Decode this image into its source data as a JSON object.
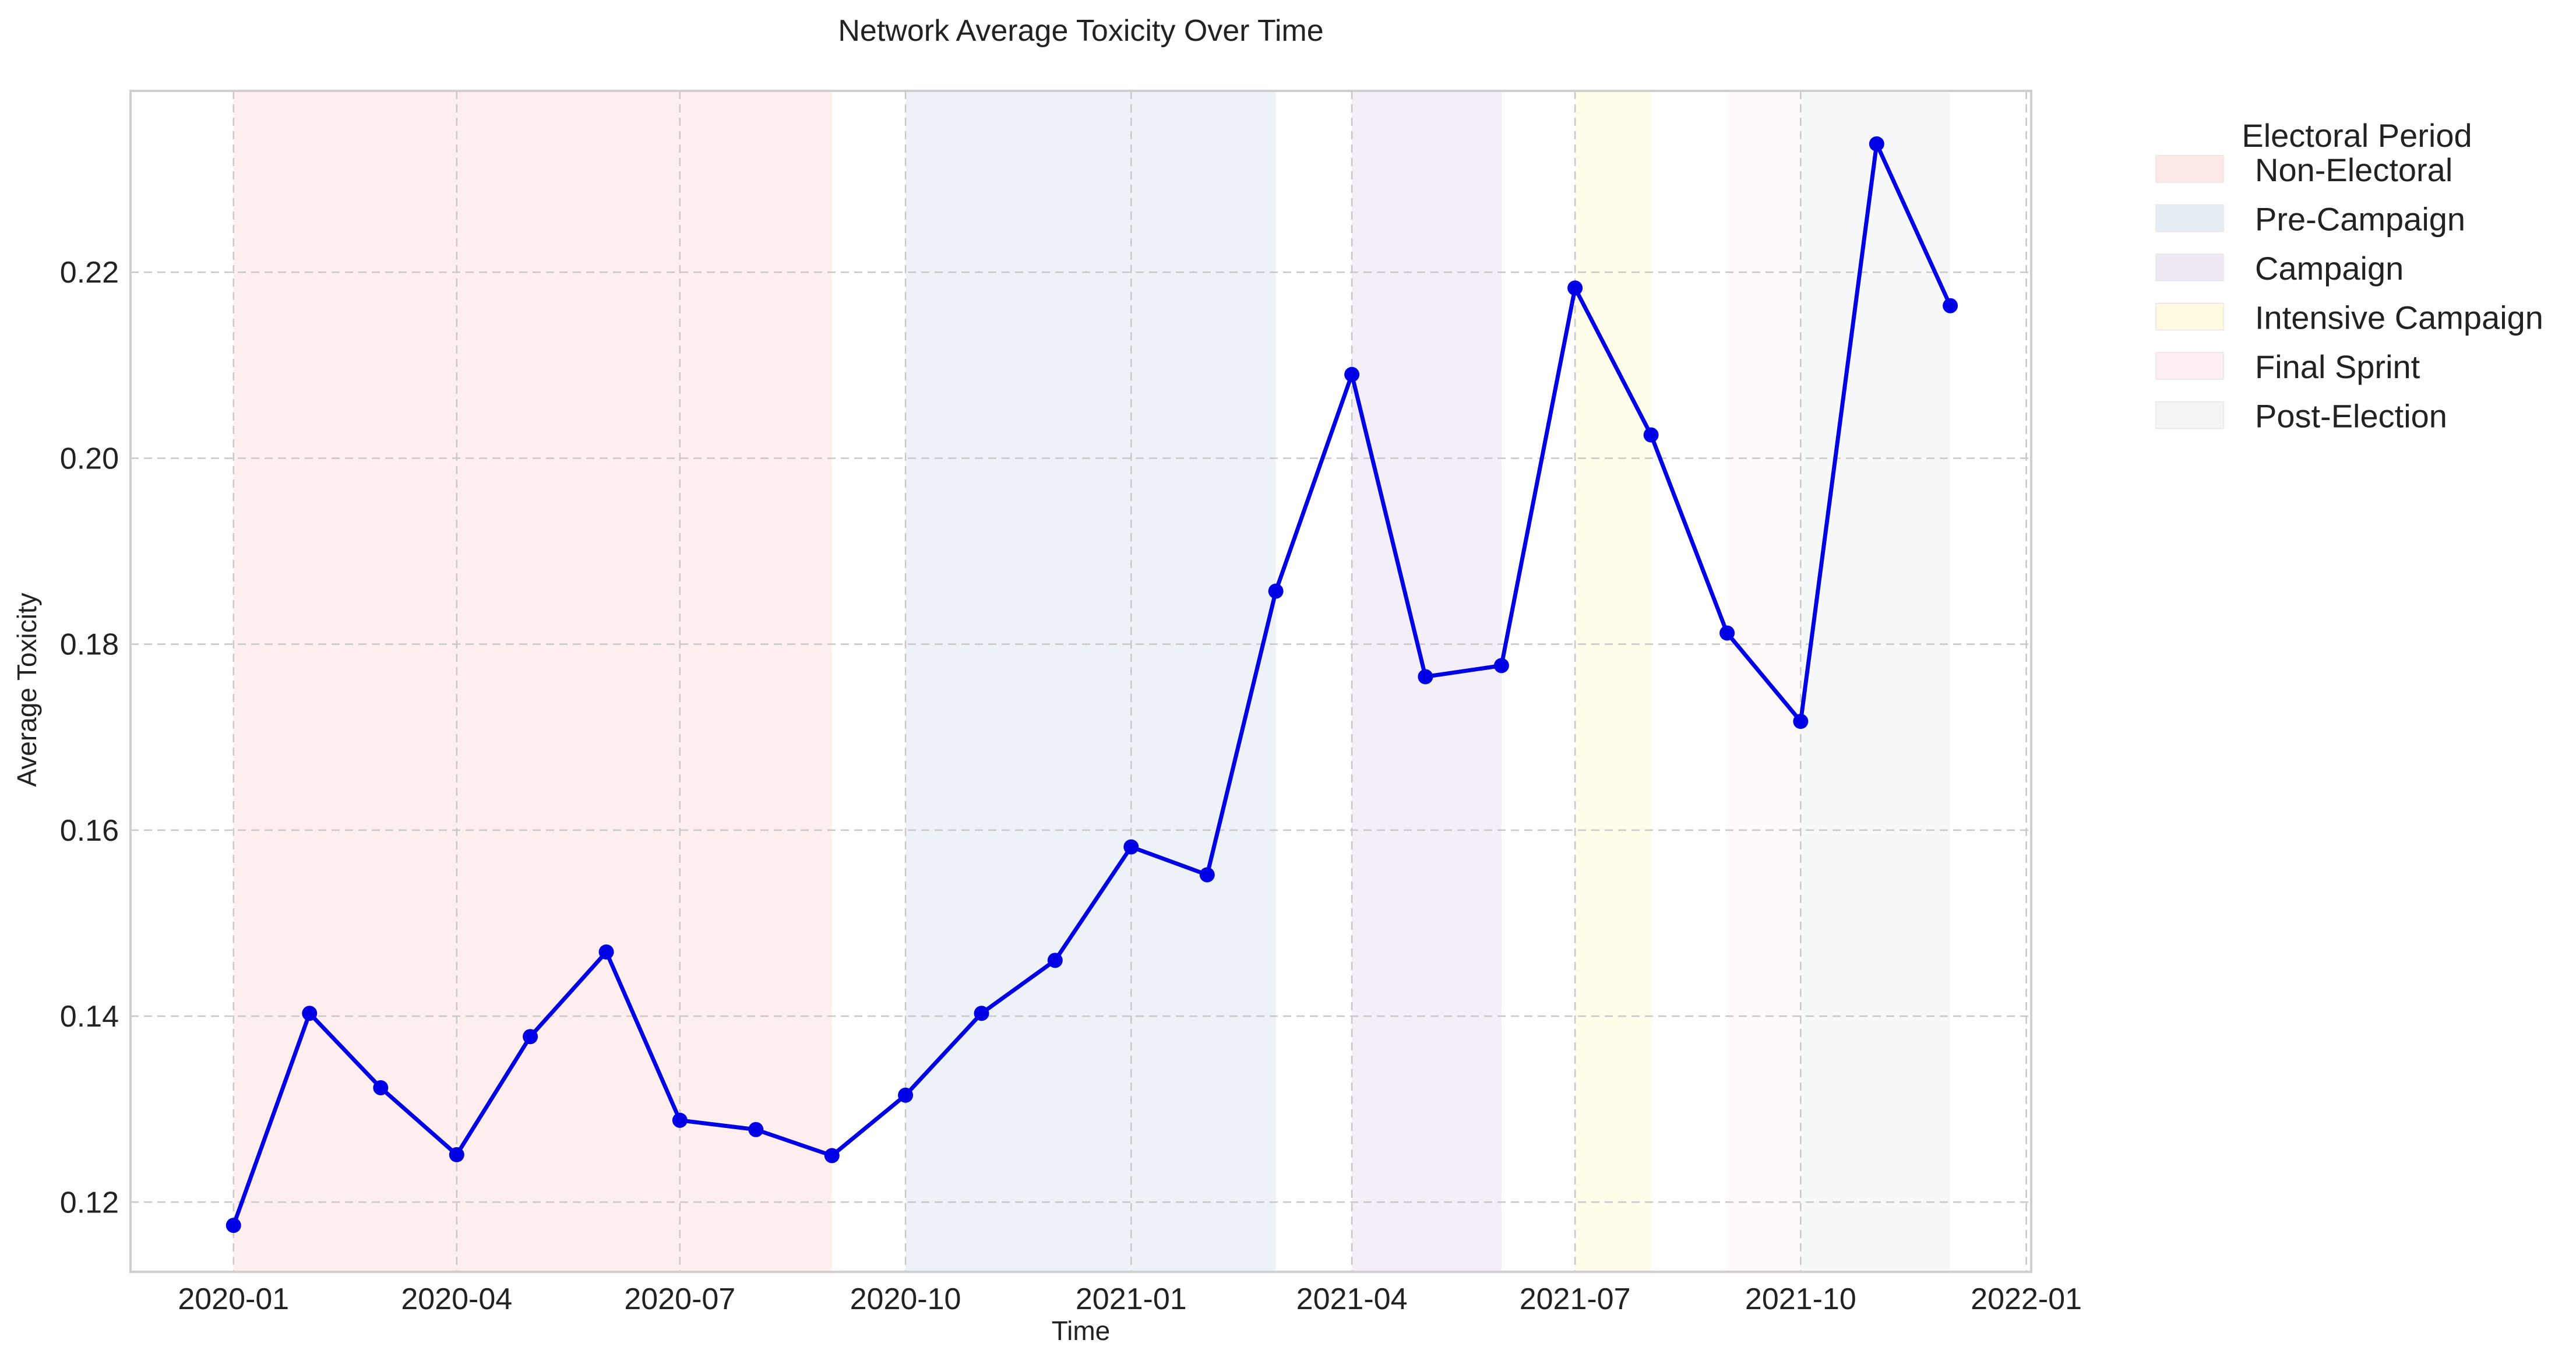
{
  "chart_data": {
    "type": "line",
    "title": "Network Average Toxicity Over Time",
    "xlabel": "Time",
    "ylabel": "Average Toxicity",
    "grid": true,
    "legend_position": "outside-top-right",
    "xlim": [
      "2019-11-20",
      "2022-01-03"
    ],
    "ylim": [
      0.1125,
      0.2395
    ],
    "x_ticks": [
      "2020-01",
      "2020-04",
      "2020-07",
      "2020-10",
      "2021-01",
      "2021-04",
      "2021-07",
      "2021-10",
      "2022-01"
    ],
    "y_ticks": [
      0.12,
      0.14,
      0.16,
      0.18,
      0.2,
      0.22
    ],
    "y_tick_labels": [
      "0.12",
      "0.14",
      "0.16",
      "0.18",
      "0.20",
      "0.22"
    ],
    "series": [
      {
        "color": "#0000e6",
        "marker": "circle",
        "x": [
          "2020-01-01",
          "2020-02-01",
          "2020-03-01",
          "2020-04-01",
          "2020-05-01",
          "2020-06-01",
          "2020-07-01",
          "2020-08-01",
          "2020-09-01",
          "2020-10-01",
          "2020-11-01",
          "2020-12-01",
          "2021-01-01",
          "2021-02-01",
          "2021-03-01",
          "2021-04-01",
          "2021-05-01",
          "2021-06-01",
          "2021-07-01",
          "2021-08-01",
          "2021-09-01",
          "2021-10-01",
          "2021-11-01",
          "2021-12-01"
        ],
        "values": [
          0.1175,
          0.1403,
          0.1323,
          0.1251,
          0.1378,
          0.1469,
          0.1288,
          0.1278,
          0.125,
          0.1315,
          0.1403,
          0.146,
          0.1582,
          0.1552,
          0.1857,
          0.209,
          0.1765,
          0.1777,
          0.2183,
          0.2025,
          0.1812,
          0.1717,
          0.2338,
          0.2164
        ]
      }
    ],
    "legend": {
      "title": "Electoral Period",
      "entries": [
        {
          "label": "Non-Electoral",
          "color": "#fde8e8"
        },
        {
          "label": "Pre-Campaign",
          "color": "#e6eef6"
        },
        {
          "label": "Campaign",
          "color": "#efe8f5"
        },
        {
          "label": "Intensive Campaign",
          "color": "#fffbe3"
        },
        {
          "label": "Final Sprint",
          "color": "#fdeef3"
        },
        {
          "label": "Post-Election",
          "color": "#f4f5f7"
        }
      ]
    },
    "periods": [
      {
        "label": "Non-Electoral",
        "start": "2020-01-01",
        "end": "2020-09-01",
        "color": "#fde8e8",
        "opacity": 0.75
      },
      {
        "label": "Pre-Campaign",
        "start": "2020-10-01",
        "end": "2021-03-01",
        "color": "#e6eef6",
        "opacity": 0.75
      },
      {
        "label": "Campaign",
        "start": "2021-04-01",
        "end": "2021-06-01",
        "color": "#efe8f5",
        "opacity": 0.75
      },
      {
        "label": "Intensive Campaign",
        "start": "2021-07-01",
        "end": "2021-08-01",
        "color": "#fffbe3",
        "opacity": 0.75
      },
      {
        "label": "Final Sprint",
        "start": "2021-09-01",
        "end": "2021-10-01",
        "color": "#fdeef3",
        "opacity": 0.35
      },
      {
        "label": "Post-Election",
        "start": "2021-10-01",
        "end": "2021-12-01",
        "color": "#f4f5f7",
        "opacity": 0.75
      }
    ]
  }
}
